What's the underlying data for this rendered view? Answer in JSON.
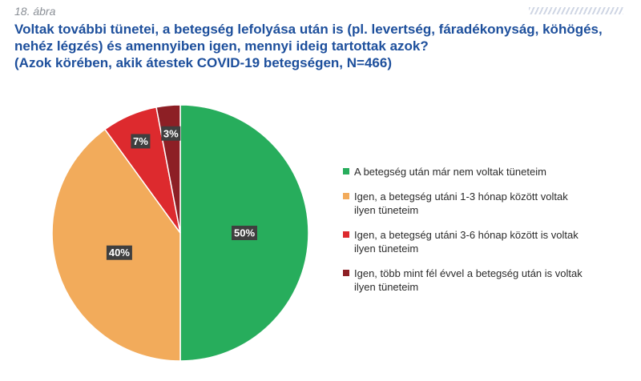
{
  "figure_label": "18. ábra",
  "title_lines": [
    "Voltak további tünetei, a betegség lefolyása után is (pl. levertség, fáradékonyság, köhögés,",
    "nehéz légzés) és amennyiben igen, mennyi ideig tartottak azok?",
    "(Azok körében, akik átestek COVID-19 betegségen, N=466)"
  ],
  "chart_data": {
    "type": "pie",
    "title": "Voltak további tünetei, a betegség lefolyása után is (pl. levertség, fáradékonyság, köhögés, nehéz légzés) és amennyiben igen, mennyi ideig tartottak azok? (Azok körében, akik átestek COVID-19 betegségen, N=466)",
    "legend_position": "right",
    "slices": [
      {
        "label": "A betegség után már nem voltak tüneteim",
        "legend_text": "A betegség után már nem voltak tüneteim",
        "value": 50,
        "display": "50%",
        "color": "#27ad5c"
      },
      {
        "label": "Igen, a betegség utáni 1-3 hónap között voltak ilyen tüneteim",
        "legend_text": "Igen, a betegség utáni 1-3 hónap között voltak\nilyen tüneteim",
        "value": 40,
        "display": "40%",
        "color": "#f2ab5b"
      },
      {
        "label": "Igen, a betegség utáni 3-6 hónap között is voltak ilyen tüneteim",
        "legend_text": "Igen, a betegség utáni 3-6 hónap között is voltak\nilyen tüneteim",
        "value": 7,
        "display": "7%",
        "color": "#dd2a2e"
      },
      {
        "label": "Igen, több mint fél évvel a betegség után is voltak ilyen tüneteim",
        "legend_text": "Igen, több mint fél évvel a betegség után is voltak\nilyen tüneteim",
        "value": 3,
        "display": "3%",
        "color": "#8d1f25"
      }
    ]
  }
}
